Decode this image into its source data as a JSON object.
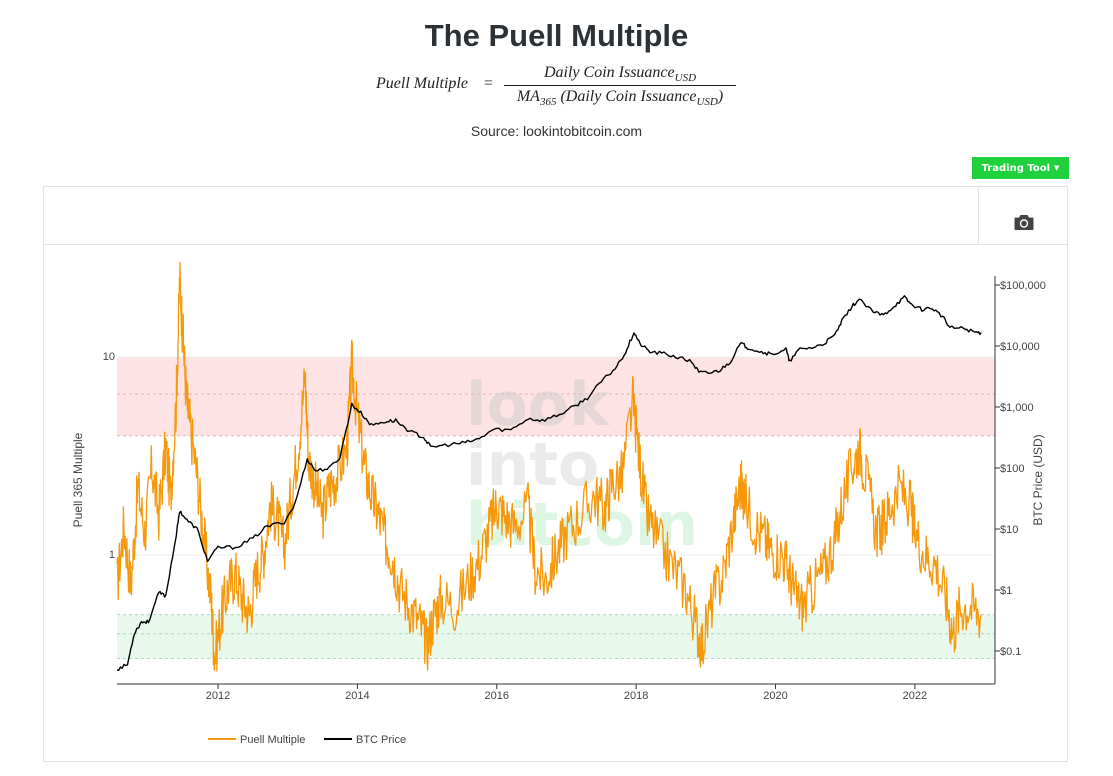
{
  "header": {
    "title": "The Puell Multiple",
    "formula_lhs": "Puell Multiple",
    "formula_eq": "=",
    "formula_num": "Daily Coin Issuance",
    "formula_num_sub": "USD",
    "formula_den_pre": "MA",
    "formula_den_pre_sub": "365",
    "formula_den": " (Daily Coin Issuance",
    "formula_den_sub": "USD",
    "formula_den_close": ")",
    "source": "Source: lookintobitcoin.com"
  },
  "toolbar": {
    "trading_tool_label": "Trading Tool",
    "camera_icon": "camera-icon",
    "dropdown_icon": "caret-down-icon"
  },
  "watermark": [
    "look",
    "into",
    "bitcoin"
  ],
  "colors": {
    "puell": "#f5980c",
    "btc": "#000000",
    "red_band": "#fde3e3",
    "green_band": "#e8f8ed",
    "button": "#1fd13c"
  },
  "chart_data": {
    "type": "line",
    "ylabel": "Puell 365 Multiple",
    "y2label": "BTC Price (USD)",
    "y_scale": "log",
    "y2_scale": "log",
    "x_ticks": [
      "2012",
      "2014",
      "2016",
      "2018",
      "2020",
      "2022"
    ],
    "y_ticks": [
      "1",
      "10"
    ],
    "y2_ticks": [
      "$0.1",
      "$1",
      "$10",
      "$100",
      "$1,000",
      "$10,000",
      "$100,000"
    ],
    "legend": [
      "Puell Multiple",
      "BTC Price"
    ],
    "legend_position": "bottom-center",
    "bands": [
      {
        "color": "red",
        "from": 4,
        "to": 10,
        "line": 6.5
      },
      {
        "color": "green",
        "from": 0.3,
        "to": 0.5,
        "line": 0.4
      }
    ],
    "series": [
      {
        "name": "Puell Multiple",
        "color": "#f5980c",
        "points": [
          [
            2010.55,
            0.7
          ],
          [
            2010.65,
            1.4
          ],
          [
            2010.75,
            0.7
          ],
          [
            2010.85,
            2.2
          ],
          [
            2010.95,
            1.3
          ],
          [
            2011.05,
            2.8
          ],
          [
            2011.15,
            1.6
          ],
          [
            2011.25,
            3.5
          ],
          [
            2011.32,
            2.0
          ],
          [
            2011.4,
            6.0
          ],
          [
            2011.45,
            25.0
          ],
          [
            2011.5,
            12.0
          ],
          [
            2011.55,
            6.0
          ],
          [
            2011.6,
            4.5
          ],
          [
            2011.7,
            2.5
          ],
          [
            2011.8,
            1.2
          ],
          [
            2011.9,
            0.6
          ],
          [
            2011.95,
            0.3
          ],
          [
            2012.05,
            0.5
          ],
          [
            2012.15,
            0.7
          ],
          [
            2012.25,
            0.8
          ],
          [
            2012.35,
            0.6
          ],
          [
            2012.45,
            0.5
          ],
          [
            2012.55,
            0.8
          ],
          [
            2012.65,
            1.0
          ],
          [
            2012.75,
            1.8
          ],
          [
            2012.85,
            1.5
          ],
          [
            2012.95,
            1.1
          ],
          [
            2013.05,
            2.0
          ],
          [
            2013.15,
            3.5
          ],
          [
            2013.25,
            8.0
          ],
          [
            2013.3,
            3.0
          ],
          [
            2013.4,
            2.2
          ],
          [
            2013.5,
            1.6
          ],
          [
            2013.6,
            2.2
          ],
          [
            2013.7,
            2.5
          ],
          [
            2013.85,
            3.5
          ],
          [
            2013.92,
            9.0
          ],
          [
            2014.0,
            5.0
          ],
          [
            2014.1,
            2.8
          ],
          [
            2014.2,
            2.0
          ],
          [
            2014.3,
            1.6
          ],
          [
            2014.4,
            1.2
          ],
          [
            2014.5,
            1.0
          ],
          [
            2014.6,
            0.7
          ],
          [
            2014.75,
            0.55
          ],
          [
            2014.9,
            0.45
          ],
          [
            2015.0,
            0.35
          ],
          [
            2015.1,
            0.5
          ],
          [
            2015.2,
            0.6
          ],
          [
            2015.4,
            0.55
          ],
          [
            2015.6,
            0.75
          ],
          [
            2015.75,
            0.95
          ],
          [
            2015.9,
            1.4
          ],
          [
            2016.0,
            1.8
          ],
          [
            2016.1,
            1.6
          ],
          [
            2016.25,
            1.4
          ],
          [
            2016.45,
            1.7
          ],
          [
            2016.55,
            0.85
          ],
          [
            2016.7,
            0.75
          ],
          [
            2016.85,
            1.0
          ],
          [
            2017.0,
            1.3
          ],
          [
            2017.2,
            1.6
          ],
          [
            2017.4,
            2.0
          ],
          [
            2017.55,
            1.7
          ],
          [
            2017.65,
            2.3
          ],
          [
            2017.8,
            2.5
          ],
          [
            2017.95,
            6.0
          ],
          [
            2018.05,
            3.0
          ],
          [
            2018.15,
            1.6
          ],
          [
            2018.3,
            1.2
          ],
          [
            2018.5,
            0.9
          ],
          [
            2018.7,
            0.7
          ],
          [
            2018.85,
            0.45
          ],
          [
            2018.95,
            0.35
          ],
          [
            2019.1,
            0.6
          ],
          [
            2019.25,
            0.8
          ],
          [
            2019.4,
            1.5
          ],
          [
            2019.5,
            2.3
          ],
          [
            2019.55,
            2.0
          ],
          [
            2019.7,
            1.4
          ],
          [
            2019.85,
            1.2
          ],
          [
            2019.95,
            1.05
          ],
          [
            2020.1,
            1.0
          ],
          [
            2020.2,
            0.8
          ],
          [
            2020.3,
            0.6
          ],
          [
            2020.4,
            0.55
          ],
          [
            2020.55,
            0.7
          ],
          [
            2020.7,
            0.85
          ],
          [
            2020.85,
            1.2
          ],
          [
            2020.95,
            1.8
          ],
          [
            2021.1,
            2.8
          ],
          [
            2021.2,
            3.5
          ],
          [
            2021.3,
            2.5
          ],
          [
            2021.45,
            1.3
          ],
          [
            2021.55,
            1.4
          ],
          [
            2021.65,
            1.8
          ],
          [
            2021.8,
            2.2
          ],
          [
            2021.95,
            1.7
          ],
          [
            2022.0,
            1.3
          ],
          [
            2022.15,
            1.0
          ],
          [
            2022.3,
            0.9
          ],
          [
            2022.45,
            0.6
          ],
          [
            2022.55,
            0.4
          ],
          [
            2022.65,
            0.55
          ],
          [
            2022.8,
            0.55
          ],
          [
            2022.95,
            0.5
          ]
        ]
      },
      {
        "name": "BTC Price",
        "color": "#000000",
        "points": [
          [
            2010.55,
            0.05
          ],
          [
            2010.7,
            0.06
          ],
          [
            2010.8,
            0.2
          ],
          [
            2010.9,
            0.3
          ],
          [
            2011.0,
            0.3
          ],
          [
            2011.15,
            0.9
          ],
          [
            2011.25,
            0.8
          ],
          [
            2011.4,
            8
          ],
          [
            2011.45,
            20
          ],
          [
            2011.55,
            14
          ],
          [
            2011.7,
            10
          ],
          [
            2011.85,
            3
          ],
          [
            2012.0,
            5
          ],
          [
            2012.25,
            5
          ],
          [
            2012.5,
            7
          ],
          [
            2012.7,
            11
          ],
          [
            2012.95,
            13
          ],
          [
            2013.1,
            25
          ],
          [
            2013.28,
            140
          ],
          [
            2013.4,
            90
          ],
          [
            2013.6,
            100
          ],
          [
            2013.75,
            150
          ],
          [
            2013.92,
            1100
          ],
          [
            2014.05,
            800
          ],
          [
            2014.2,
            500
          ],
          [
            2014.4,
            580
          ],
          [
            2014.55,
            600
          ],
          [
            2014.75,
            400
          ],
          [
            2014.95,
            320
          ],
          [
            2015.05,
            220
          ],
          [
            2015.3,
            240
          ],
          [
            2015.55,
            260
          ],
          [
            2015.75,
            300
          ],
          [
            2015.95,
            430
          ],
          [
            2016.2,
            420
          ],
          [
            2016.45,
            650
          ],
          [
            2016.65,
            600
          ],
          [
            2016.9,
            750
          ],
          [
            2017.1,
            1000
          ],
          [
            2017.3,
            1400
          ],
          [
            2017.5,
            2600
          ],
          [
            2017.7,
            4300
          ],
          [
            2017.85,
            8000
          ],
          [
            2017.97,
            17000
          ],
          [
            2018.05,
            11000
          ],
          [
            2018.2,
            8000
          ],
          [
            2018.4,
            7500
          ],
          [
            2018.6,
            6500
          ],
          [
            2018.8,
            5500
          ],
          [
            2018.9,
            3700
          ],
          [
            2019.05,
            3600
          ],
          [
            2019.2,
            4000
          ],
          [
            2019.35,
            5500
          ],
          [
            2019.5,
            11000
          ],
          [
            2019.6,
            9500
          ],
          [
            2019.8,
            8000
          ],
          [
            2019.95,
            7200
          ],
          [
            2020.15,
            9000
          ],
          [
            2020.2,
            5500
          ],
          [
            2020.35,
            9000
          ],
          [
            2020.55,
            9500
          ],
          [
            2020.7,
            11000
          ],
          [
            2020.85,
            15000
          ],
          [
            2020.95,
            25000
          ],
          [
            2021.1,
            45000
          ],
          [
            2021.2,
            58000
          ],
          [
            2021.4,
            36000
          ],
          [
            2021.55,
            32000
          ],
          [
            2021.7,
            45000
          ],
          [
            2021.85,
            63000
          ],
          [
            2021.95,
            48000
          ],
          [
            2022.1,
            40000
          ],
          [
            2022.25,
            42000
          ],
          [
            2022.4,
            30000
          ],
          [
            2022.5,
            20000
          ],
          [
            2022.7,
            19500
          ],
          [
            2022.85,
            17000
          ],
          [
            2022.95,
            16500
          ]
        ]
      }
    ]
  }
}
